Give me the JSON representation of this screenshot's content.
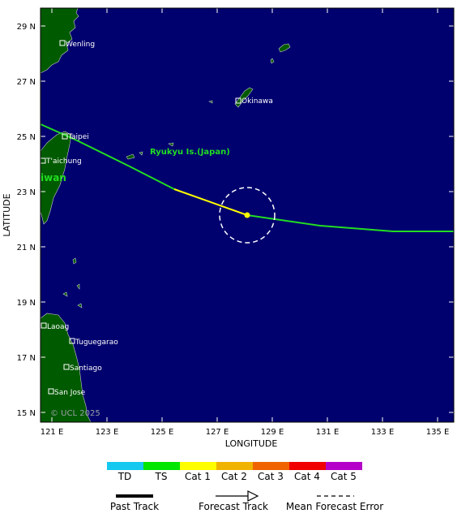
{
  "map": {
    "axes": {
      "x_title": "LONGITUDE",
      "y_title": "LATITUDE",
      "x_ticks": [
        "121 E",
        "123 E",
        "125 E",
        "127 E",
        "129 E",
        "131 E",
        "133 E",
        "135 E"
      ],
      "y_ticks": [
        "29 N",
        "27 N",
        "25 N",
        "23 N",
        "21 N",
        "19 N",
        "17 N",
        "15 N"
      ]
    },
    "places": {
      "wenling": "Wenling",
      "okinawa": "Okinawa",
      "taipei": "Taipei",
      "taichung": "T'aichung",
      "laoag": "Laoag",
      "tuguegarao": "Tuguegarao",
      "santiago": "Santiago",
      "san_jose": "San Jose"
    },
    "regions": {
      "ryukyu": "Ryukyu Is.(Japan)",
      "taiwan": "iwan"
    },
    "copyright": "© UCL 2025",
    "colors": {
      "ocean": "#00006e",
      "land": "#005a00",
      "track_ts": "#22dd22",
      "track_cat1": "#ffff00"
    }
  },
  "legend": {
    "categories": [
      {
        "label": "TD",
        "color": "#14c8f0"
      },
      {
        "label": "TS",
        "color": "#00e600"
      },
      {
        "label": "Cat 1",
        "color": "#ffff00"
      },
      {
        "label": "Cat 2",
        "color": "#f0b400"
      },
      {
        "label": "Cat 3",
        "color": "#f06400"
      },
      {
        "label": "Cat 4",
        "color": "#f00000"
      },
      {
        "label": "Cat 5",
        "color": "#b400c8"
      }
    ],
    "past_track": "Past Track",
    "forecast_track": "Forecast Track",
    "mean_error": "Mean Forecast Error"
  }
}
